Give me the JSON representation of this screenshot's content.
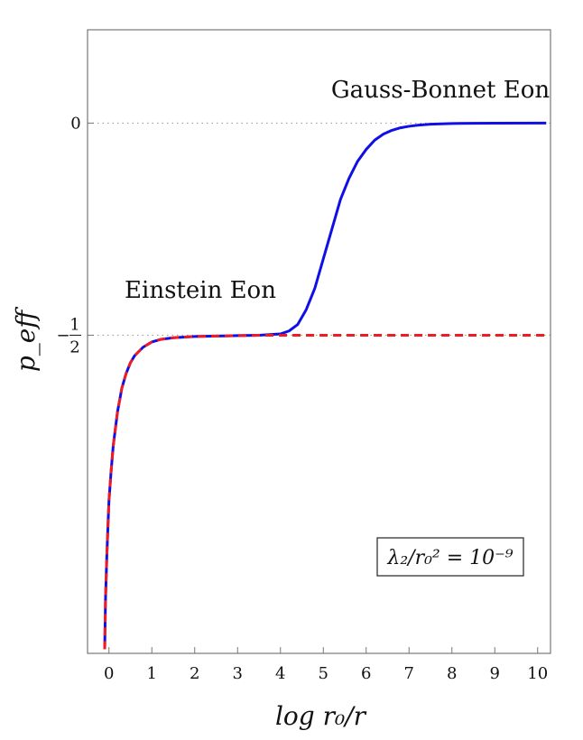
{
  "chart_data": {
    "type": "line",
    "xlabel": "log r₀/r",
    "ylabel": "p_eff",
    "xlim": [
      -0.5,
      10.3
    ],
    "ylim": [
      -1.25,
      0.22
    ],
    "x_ticks": [
      0,
      1,
      2,
      3,
      4,
      5,
      6,
      7,
      8,
      9,
      10
    ],
    "x_tick_labels": [
      "0",
      "1",
      "2",
      "3",
      "4",
      "5",
      "6",
      "7",
      "8",
      "9",
      "10"
    ],
    "y_ticks": [
      0,
      -0.5
    ],
    "y_tick_labels": [
      "0",
      "− 1/2"
    ],
    "reference_lines": [
      {
        "y": 0,
        "style": "dotted",
        "color": "#9e9e9e"
      },
      {
        "y": -0.5,
        "style": "dotted",
        "color": "#9e9e9e"
      }
    ],
    "annotations": [
      {
        "text": "Gauss-Bonnet Eon",
        "near_y": 0
      },
      {
        "text": "Einstein Eon",
        "near_y": -0.5
      }
    ],
    "legend_box": {
      "text": "λ₂/r₀² = 10⁻⁹",
      "placement": "bottom-right"
    },
    "series": [
      {
        "color": "#1010e6",
        "style": "solid",
        "x": [
          -0.1,
          -0.08,
          -0.05,
          -0.02,
          0.0,
          0.05,
          0.1,
          0.2,
          0.3,
          0.4,
          0.5,
          0.6,
          0.8,
          1.0,
          1.2,
          1.5,
          2.0,
          2.5,
          3.0,
          3.5,
          4.0,
          4.2,
          4.4,
          4.6,
          4.8,
          5.0,
          5.2,
          5.4,
          5.6,
          5.8,
          6.0,
          6.2,
          6.4,
          6.6,
          6.8,
          7.0,
          7.2,
          7.5,
          8.0,
          8.5,
          9.0,
          10.2
        ],
        "y": [
          -1.24,
          -1.12,
          -1.02,
          -0.94,
          -0.89,
          -0.82,
          -0.76,
          -0.68,
          -0.625,
          -0.59,
          -0.565,
          -0.548,
          -0.528,
          -0.516,
          -0.51,
          -0.506,
          -0.503,
          -0.502,
          -0.501,
          -0.5,
          -0.497,
          -0.49,
          -0.475,
          -0.44,
          -0.39,
          -0.32,
          -0.25,
          -0.18,
          -0.13,
          -0.09,
          -0.062,
          -0.04,
          -0.026,
          -0.017,
          -0.011,
          -0.0075,
          -0.005,
          -0.0025,
          -0.001,
          -0.0004,
          -0.0002,
          0.0
        ]
      },
      {
        "color": "#ee1c24",
        "style": "dashed",
        "x": [
          -0.1,
          -0.08,
          -0.05,
          -0.02,
          0.0,
          0.05,
          0.1,
          0.2,
          0.3,
          0.4,
          0.5,
          0.6,
          0.8,
          1.0,
          1.2,
          1.5,
          2.0,
          2.5,
          3.0,
          3.5,
          4.0,
          5.0,
          6.0,
          7.0,
          8.0,
          9.0,
          10.2
        ],
        "y": [
          -1.24,
          -1.12,
          -1.02,
          -0.94,
          -0.89,
          -0.82,
          -0.76,
          -0.68,
          -0.625,
          -0.59,
          -0.565,
          -0.548,
          -0.528,
          -0.516,
          -0.51,
          -0.506,
          -0.503,
          -0.502,
          -0.501,
          -0.5,
          -0.5,
          -0.5,
          -0.5,
          -0.5,
          -0.5,
          -0.5,
          -0.5
        ]
      }
    ]
  }
}
